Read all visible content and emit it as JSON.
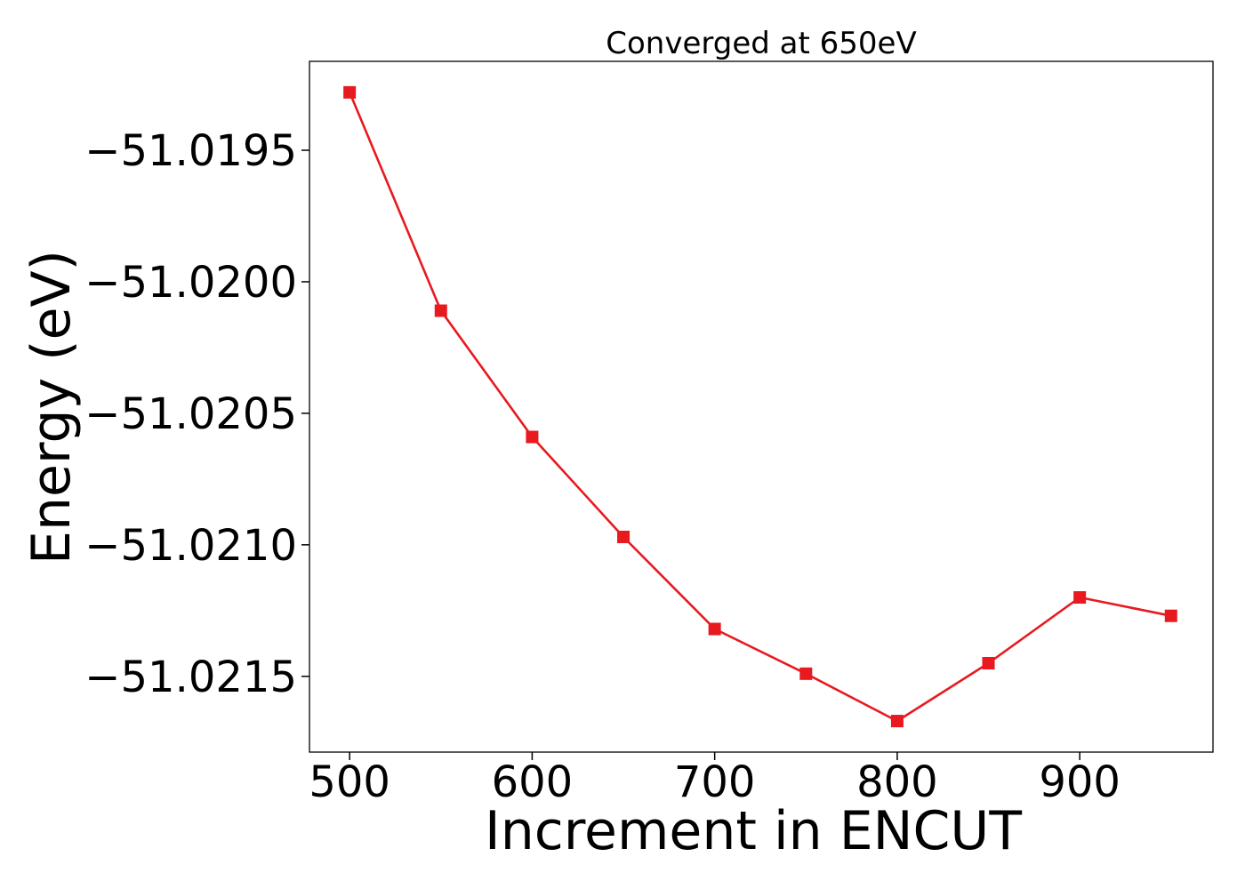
{
  "chart_data": {
    "type": "line",
    "title": "Converged at 650eV",
    "xlabel": "Increment in ENCUT",
    "ylabel": "Energy (eV)",
    "x": [
      500,
      550,
      600,
      650,
      700,
      750,
      800,
      850,
      900,
      950
    ],
    "series": [
      {
        "values": [
          -51.01928,
          -51.02011,
          -51.02059,
          -51.02097,
          -51.02132,
          -51.02149,
          -51.02167,
          -51.02145,
          -51.0212,
          -51.02127
        ],
        "color": "#e8191f",
        "marker": "square"
      }
    ],
    "xlim": [
      478,
      973
    ],
    "ylim": [
      -51.021788,
      -51.019162
    ],
    "xticks": [
      500,
      600,
      700,
      800,
      900
    ],
    "xtick_labels": [
      "500",
      "600",
      "700",
      "800",
      "900"
    ],
    "yticks": [
      -51.0195,
      -51.02,
      -51.0205,
      -51.021,
      -51.0215
    ],
    "ytick_labels": [
      "−51.0195",
      "−51.0200",
      "−51.0205",
      "−51.0210",
      "−51.0215"
    ],
    "grid": false,
    "legend": false
  }
}
